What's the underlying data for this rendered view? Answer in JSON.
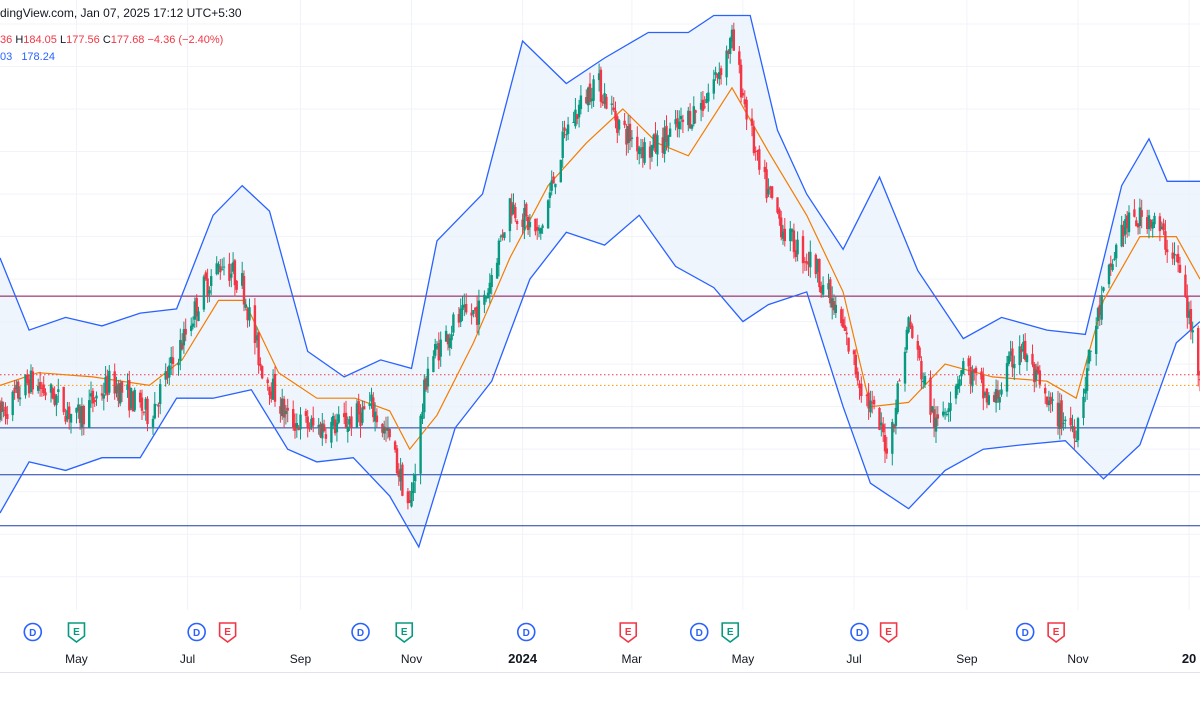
{
  "header": {
    "source_text": "dingView.com, Jan 07, 2025 17:12 UTC+5:30"
  },
  "ohlc": {
    "open_fragment": "36",
    "h_label": "H",
    "high": "184.05",
    "l_label": "L",
    "low": "177.56",
    "c_label": "C",
    "close": "177.68",
    "change": "−4.36 (−2.40%)"
  },
  "bollinger": {
    "value_fragment": "03",
    "value2": "178.24"
  },
  "colors": {
    "up": "#089981",
    "down": "#f23645",
    "band_line": "#2962ff",
    "band_fill": "#eaf2fc",
    "basis": "#f57c00",
    "resistance": "#880e4f",
    "support": "#1e3ea8",
    "dotted_red": "#f23645",
    "dotted_orange": "#ff9800",
    "grid": "#f0f3fa"
  },
  "events": [
    {
      "type": "D",
      "date": "2023-04-07"
    },
    {
      "type": "E",
      "date": "2023-05-01"
    },
    {
      "type": "D",
      "date": "2023-07-06"
    },
    {
      "type": "E",
      "date": "2023-07-23"
    },
    {
      "type": "D",
      "date": "2023-10-04"
    },
    {
      "type": "E",
      "date": "2023-10-28"
    },
    {
      "type": "D",
      "date": "2024-01-03"
    },
    {
      "type": "E",
      "date": "2024-02-28"
    },
    {
      "type": "D",
      "date": "2024-04-07"
    },
    {
      "type": "E",
      "date": "2024-04-24"
    },
    {
      "type": "D",
      "date": "2024-07-04"
    },
    {
      "type": "E",
      "date": "2024-07-20"
    },
    {
      "type": "D",
      "date": "2024-10-03"
    },
    {
      "type": "E",
      "date": "2024-10-20"
    }
  ],
  "chart_data": {
    "type": "candlestick",
    "x_axis": {
      "tick_labels": [
        "May",
        "Jul",
        "Sep",
        "Nov",
        "2024",
        "Mar",
        "May",
        "Jul",
        "Sep",
        "Nov",
        "20"
      ],
      "tick_dates": [
        "2023-05-01",
        "2023-07-01",
        "2023-09-01",
        "2023-11-01",
        "2024-01-01",
        "2024-03-01",
        "2024-05-01",
        "2024-07-01",
        "2024-09-01",
        "2024-11-01",
        "2025-01-01"
      ],
      "range": [
        "2023-03-20",
        "2025-01-07"
      ]
    },
    "y_axis": {
      "range": [
        125,
        260
      ],
      "scale": "linear"
    },
    "horizontal_lines": [
      {
        "price": 196,
        "style": "solid",
        "color": "resistance"
      },
      {
        "price": 177.5,
        "style": "dotted",
        "color": "dotted_red"
      },
      {
        "price": 175,
        "style": "dotted",
        "color": "dotted_orange"
      },
      {
        "price": 165,
        "style": "solid",
        "color": "support"
      },
      {
        "price": 154,
        "style": "solid",
        "color": "support"
      },
      {
        "price": 142,
        "style": "solid",
        "color": "support"
      }
    ],
    "bollinger_basis": [
      [
        "2023-03-20",
        175
      ],
      [
        "2023-04-10",
        178
      ],
      [
        "2023-05-10",
        177
      ],
      [
        "2023-06-10",
        175
      ],
      [
        "2023-06-28",
        181
      ],
      [
        "2023-07-18",
        195
      ],
      [
        "2023-08-01",
        195
      ],
      [
        "2023-08-20",
        178
      ],
      [
        "2023-09-10",
        172
      ],
      [
        "2023-10-01",
        172
      ],
      [
        "2023-10-20",
        169
      ],
      [
        "2023-10-31",
        160
      ],
      [
        "2023-11-15",
        168
      ],
      [
        "2023-12-05",
        185
      ],
      [
        "2023-12-25",
        205
      ],
      [
        "2024-01-15",
        222
      ],
      [
        "2024-02-05",
        232
      ],
      [
        "2024-02-25",
        240
      ],
      [
        "2024-03-15",
        232
      ],
      [
        "2024-04-01",
        229
      ],
      [
        "2024-04-25",
        245
      ],
      [
        "2024-05-15",
        230
      ],
      [
        "2024-06-05",
        215
      ],
      [
        "2024-06-25",
        197
      ],
      [
        "2024-07-10",
        170
      ],
      [
        "2024-07-31",
        171
      ],
      [
        "2024-08-20",
        180
      ],
      [
        "2024-09-15",
        177
      ],
      [
        "2024-10-15",
        176
      ],
      [
        "2024-10-31",
        172
      ],
      [
        "2024-11-15",
        195
      ],
      [
        "2024-12-05",
        210
      ],
      [
        "2024-12-25",
        210
      ],
      [
        "2025-01-07",
        200
      ]
    ],
    "bollinger_upper": [
      [
        "2023-03-20",
        205
      ],
      [
        "2023-04-05",
        188
      ],
      [
        "2023-04-25",
        191
      ],
      [
        "2023-05-15",
        189
      ],
      [
        "2023-06-05",
        192
      ],
      [
        "2023-06-25",
        193
      ],
      [
        "2023-07-15",
        215
      ],
      [
        "2023-07-31",
        222
      ],
      [
        "2023-08-15",
        216
      ],
      [
        "2023-09-05",
        183
      ],
      [
        "2023-09-25",
        177
      ],
      [
        "2023-10-15",
        181
      ],
      [
        "2023-11-01",
        179
      ],
      [
        "2023-11-15",
        209
      ],
      [
        "2023-12-10",
        220
      ],
      [
        "2024-01-01",
        256
      ],
      [
        "2024-01-25",
        246
      ],
      [
        "2024-02-15",
        252
      ],
      [
        "2024-03-10",
        258
      ],
      [
        "2024-04-01",
        258
      ],
      [
        "2024-04-15",
        262
      ],
      [
        "2024-05-05",
        262
      ],
      [
        "2024-05-20",
        235
      ],
      [
        "2024-06-05",
        220
      ],
      [
        "2024-06-25",
        207
      ],
      [
        "2024-07-15",
        224
      ],
      [
        "2024-08-05",
        202
      ],
      [
        "2024-08-30",
        186
      ],
      [
        "2024-09-20",
        191
      ],
      [
        "2024-10-15",
        188
      ],
      [
        "2024-11-05",
        187
      ],
      [
        "2024-11-25",
        222
      ],
      [
        "2024-12-10",
        233
      ],
      [
        "2024-12-20",
        223
      ],
      [
        "2025-01-07",
        223
      ]
    ],
    "bollinger_lower": [
      [
        "2023-03-20",
        145
      ],
      [
        "2023-04-05",
        157
      ],
      [
        "2023-04-25",
        155
      ],
      [
        "2023-05-15",
        158
      ],
      [
        "2023-06-05",
        158
      ],
      [
        "2023-06-25",
        172
      ],
      [
        "2023-07-15",
        172
      ],
      [
        "2023-08-05",
        174
      ],
      [
        "2023-08-25",
        160
      ],
      [
        "2023-09-10",
        157
      ],
      [
        "2023-09-30",
        158
      ],
      [
        "2023-10-20",
        149
      ],
      [
        "2023-11-05",
        137
      ],
      [
        "2023-11-25",
        165
      ],
      [
        "2023-12-15",
        176
      ],
      [
        "2024-01-05",
        200
      ],
      [
        "2024-01-25",
        211
      ],
      [
        "2024-02-15",
        208
      ],
      [
        "2024-03-05",
        215
      ],
      [
        "2024-03-25",
        203
      ],
      [
        "2024-04-15",
        198
      ],
      [
        "2024-05-01",
        190
      ],
      [
        "2024-05-15",
        194
      ],
      [
        "2024-06-05",
        197
      ],
      [
        "2024-06-25",
        170
      ],
      [
        "2024-07-10",
        152
      ],
      [
        "2024-07-31",
        146
      ],
      [
        "2024-08-20",
        155
      ],
      [
        "2024-09-10",
        160
      ],
      [
        "2024-10-01",
        161
      ],
      [
        "2024-10-25",
        162
      ],
      [
        "2024-11-15",
        153
      ],
      [
        "2024-12-05",
        161
      ],
      [
        "2024-12-25",
        185
      ],
      [
        "2025-01-07",
        190
      ]
    ],
    "price_path": [
      [
        "2023-03-20",
        168
      ],
      [
        "2023-04-05",
        176
      ],
      [
        "2023-04-20",
        172
      ],
      [
        "2023-05-01",
        167
      ],
      [
        "2023-05-20",
        176
      ],
      [
        "2023-06-10",
        168
      ],
      [
        "2023-06-25",
        182
      ],
      [
        "2023-07-10",
        198
      ],
      [
        "2023-07-20",
        204
      ],
      [
        "2023-07-31",
        199
      ],
      [
        "2023-08-10",
        180
      ],
      [
        "2023-08-25",
        167
      ],
      [
        "2023-09-10",
        165
      ],
      [
        "2023-09-25",
        166
      ],
      [
        "2023-10-10",
        170
      ],
      [
        "2023-10-20",
        162
      ],
      [
        "2023-10-31",
        146
      ],
      [
        "2023-11-10",
        180
      ],
      [
        "2023-11-25",
        190
      ],
      [
        "2023-12-10",
        193
      ],
      [
        "2023-12-25",
        218
      ],
      [
        "2024-01-10",
        210
      ],
      [
        "2024-01-25",
        235
      ],
      [
        "2024-02-10",
        247
      ],
      [
        "2024-02-25",
        235
      ],
      [
        "2024-03-10",
        230
      ],
      [
        "2024-03-25",
        235
      ],
      [
        "2024-04-10",
        242
      ],
      [
        "2024-04-25",
        256
      ],
      [
        "2024-05-10",
        225
      ],
      [
        "2024-05-25",
        210
      ],
      [
        "2024-06-10",
        203
      ],
      [
        "2024-06-25",
        188
      ],
      [
        "2024-07-05",
        175
      ],
      [
        "2024-07-20",
        160
      ],
      [
        "2024-07-31",
        190
      ],
      [
        "2024-08-15",
        165
      ],
      [
        "2024-08-30",
        180
      ],
      [
        "2024-09-15",
        170
      ],
      [
        "2024-09-30",
        185
      ],
      [
        "2024-10-15",
        170
      ],
      [
        "2024-10-31",
        165
      ],
      [
        "2024-11-10",
        188
      ],
      [
        "2024-11-25",
        212
      ],
      [
        "2024-12-10",
        215
      ],
      [
        "2024-12-25",
        205
      ],
      [
        "2025-01-07",
        178
      ]
    ]
  }
}
